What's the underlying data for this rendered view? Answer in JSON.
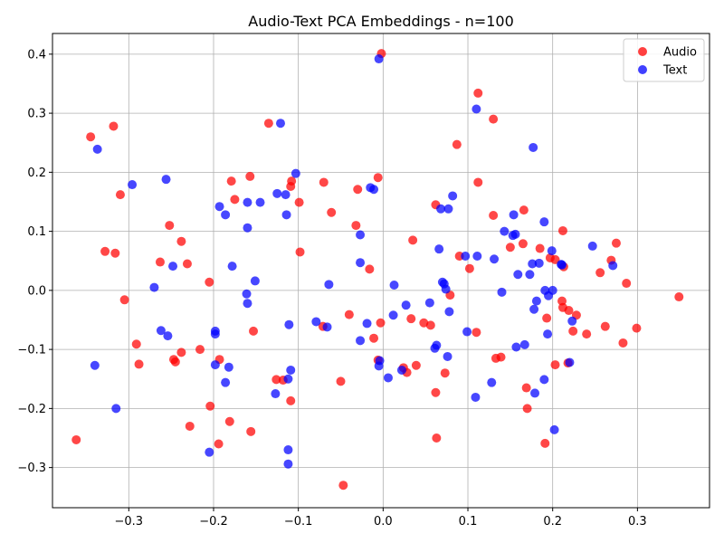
{
  "chart_data": {
    "type": "scatter",
    "title": "Audio-Text PCA Embeddings - n=100",
    "xlabel": "",
    "ylabel": "",
    "xlim": [
      -0.39,
      0.385
    ],
    "ylim": [
      -0.368,
      0.435
    ],
    "xticks": [
      -0.3,
      -0.2,
      -0.1,
      0.0,
      0.1,
      0.2,
      0.3
    ],
    "xtick_labels": [
      "−0.3",
      "−0.2",
      "−0.1",
      "0.0",
      "0.1",
      "0.2",
      "0.3"
    ],
    "yticks": [
      -0.3,
      -0.2,
      -0.1,
      0.0,
      0.1,
      0.2,
      0.3,
      0.4
    ],
    "ytick_labels": [
      "−0.3",
      "−0.2",
      "−0.1",
      "0.0",
      "0.1",
      "0.2",
      "0.3",
      "0.4"
    ],
    "grid": true,
    "legend_position": "top-right",
    "series": [
      {
        "name": "Audio",
        "color": "#ff0000",
        "points": [
          [
            -0.345,
            0.26
          ],
          [
            -0.318,
            0.278
          ],
          [
            -0.31,
            0.162
          ],
          [
            -0.328,
            0.066
          ],
          [
            -0.316,
            0.063
          ],
          [
            -0.305,
            -0.016
          ],
          [
            -0.291,
            -0.091
          ],
          [
            -0.288,
            -0.125
          ],
          [
            -0.252,
            0.11
          ],
          [
            -0.263,
            0.048
          ],
          [
            -0.238,
            0.083
          ],
          [
            -0.231,
            0.045
          ],
          [
            -0.247,
            -0.117
          ],
          [
            -0.245,
            -0.121
          ],
          [
            -0.238,
            -0.105
          ],
          [
            -0.216,
            -0.1
          ],
          [
            -0.228,
            -0.23
          ],
          [
            -0.205,
            0.014
          ],
          [
            -0.204,
            -0.196
          ],
          [
            -0.193,
            -0.117
          ],
          [
            -0.194,
            -0.26
          ],
          [
            -0.179,
            0.185
          ],
          [
            -0.175,
            0.154
          ],
          [
            -0.157,
            0.193
          ],
          [
            -0.153,
            -0.069
          ],
          [
            -0.181,
            -0.222
          ],
          [
            -0.156,
            -0.239
          ],
          [
            -0.362,
            -0.253
          ],
          [
            -0.135,
            0.283
          ],
          [
            -0.108,
            0.185
          ],
          [
            -0.109,
            0.176
          ],
          [
            -0.099,
            0.149
          ],
          [
            -0.098,
            0.065
          ],
          [
            -0.118,
            -0.152
          ],
          [
            -0.109,
            -0.187
          ],
          [
            -0.07,
            0.183
          ],
          [
            -0.061,
            0.132
          ],
          [
            -0.071,
            -0.061
          ],
          [
            -0.05,
            -0.154
          ],
          [
            -0.047,
            -0.33
          ],
          [
            -0.03,
            0.171
          ],
          [
            -0.032,
            0.11
          ],
          [
            -0.04,
            -0.041
          ],
          [
            -0.016,
            0.036
          ],
          [
            -0.011,
            -0.081
          ],
          [
            -0.006,
            0.191
          ],
          [
            -0.002,
            0.401
          ],
          [
            -0.003,
            -0.055
          ],
          [
            -0.006,
            -0.118
          ],
          [
            0.035,
            0.085
          ],
          [
            0.033,
            -0.048
          ],
          [
            0.048,
            -0.055
          ],
          [
            0.056,
            -0.059
          ],
          [
            0.039,
            -0.127
          ],
          [
            0.028,
            -0.139
          ],
          [
            0.024,
            -0.131
          ],
          [
            0.062,
            0.145
          ],
          [
            0.062,
            -0.173
          ],
          [
            0.063,
            -0.25
          ],
          [
            0.087,
            0.247
          ],
          [
            0.09,
            0.058
          ],
          [
            0.102,
            0.037
          ],
          [
            0.079,
            -0.008
          ],
          [
            0.112,
            0.334
          ],
          [
            0.112,
            0.183
          ],
          [
            0.11,
            -0.071
          ],
          [
            0.073,
            -0.14
          ],
          [
            0.13,
            0.29
          ],
          [
            0.13,
            0.127
          ],
          [
            0.133,
            -0.115
          ],
          [
            0.139,
            -0.113
          ],
          [
            0.166,
            0.136
          ],
          [
            0.165,
            0.079
          ],
          [
            0.15,
            0.073
          ],
          [
            0.185,
            0.071
          ],
          [
            0.197,
            0.055
          ],
          [
            0.203,
            0.052
          ],
          [
            0.169,
            -0.165
          ],
          [
            0.17,
            -0.2
          ],
          [
            0.191,
            -0.259
          ],
          [
            0.193,
            -0.047
          ],
          [
            0.212,
            0.101
          ],
          [
            0.211,
            -0.018
          ],
          [
            0.212,
            -0.029
          ],
          [
            0.219,
            -0.034
          ],
          [
            0.228,
            -0.042
          ],
          [
            0.224,
            -0.069
          ],
          [
            0.203,
            -0.126
          ],
          [
            0.218,
            -0.123
          ],
          [
            0.24,
            -0.074
          ],
          [
            0.256,
            0.03
          ],
          [
            0.262,
            -0.061
          ],
          [
            0.269,
            0.051
          ],
          [
            0.275,
            0.08
          ],
          [
            0.283,
            -0.089
          ],
          [
            0.287,
            0.012
          ],
          [
            0.299,
            -0.064
          ],
          [
            0.349,
            -0.011
          ],
          [
            0.213,
            0.04
          ],
          [
            -0.126,
            -0.151
          ]
        ]
      },
      {
        "name": "Text",
        "color": "#0000ff",
        "points": [
          [
            -0.337,
            0.239
          ],
          [
            -0.296,
            0.179
          ],
          [
            -0.256,
            0.188
          ],
          [
            -0.27,
            0.005
          ],
          [
            -0.248,
            0.041
          ],
          [
            -0.262,
            -0.068
          ],
          [
            -0.254,
            -0.077
          ],
          [
            -0.34,
            -0.127
          ],
          [
            -0.315,
            -0.2
          ],
          [
            -0.193,
            0.142
          ],
          [
            -0.186,
            0.128
          ],
          [
            -0.178,
            0.041
          ],
          [
            -0.198,
            -0.069
          ],
          [
            -0.198,
            -0.074
          ],
          [
            -0.198,
            -0.126
          ],
          [
            -0.182,
            -0.13
          ],
          [
            -0.186,
            -0.156
          ],
          [
            -0.205,
            -0.274
          ],
          [
            -0.16,
            0.106
          ],
          [
            -0.16,
            0.149
          ],
          [
            -0.145,
            0.149
          ],
          [
            -0.161,
            -0.006
          ],
          [
            -0.16,
            -0.022
          ],
          [
            -0.151,
            0.016
          ],
          [
            -0.121,
            0.283
          ],
          [
            -0.125,
            0.164
          ],
          [
            -0.115,
            0.162
          ],
          [
            -0.114,
            0.128
          ],
          [
            -0.103,
            0.198
          ],
          [
            -0.111,
            -0.058
          ],
          [
            -0.112,
            -0.15
          ],
          [
            -0.109,
            -0.135
          ],
          [
            -0.127,
            -0.175
          ],
          [
            -0.112,
            -0.27
          ],
          [
            -0.112,
            -0.294
          ],
          [
            -0.064,
            0.01
          ],
          [
            -0.079,
            -0.053
          ],
          [
            -0.066,
            -0.062
          ],
          [
            -0.015,
            0.174
          ],
          [
            -0.011,
            0.171
          ],
          [
            -0.027,
            0.094
          ],
          [
            -0.027,
            0.047
          ],
          [
            -0.027,
            -0.085
          ],
          [
            -0.019,
            -0.056
          ],
          [
            -0.004,
            -0.119
          ],
          [
            -0.005,
            -0.128
          ],
          [
            -0.005,
            0.392
          ],
          [
            0.006,
            -0.148
          ],
          [
            0.012,
            -0.042
          ],
          [
            0.013,
            0.009
          ],
          [
            0.022,
            -0.135
          ],
          [
            0.027,
            -0.025
          ],
          [
            0.055,
            -0.021
          ],
          [
            0.061,
            -0.098
          ],
          [
            0.063,
            -0.093
          ],
          [
            0.066,
            0.07
          ],
          [
            0.068,
            0.138
          ],
          [
            0.07,
            0.014
          ],
          [
            0.072,
            0.011
          ],
          [
            0.074,
            0.002
          ],
          [
            0.076,
            -0.112
          ],
          [
            0.077,
            0.138
          ],
          [
            0.078,
            -0.036
          ],
          [
            0.082,
            0.16
          ],
          [
            0.097,
            0.058
          ],
          [
            0.099,
            -0.07
          ],
          [
            0.11,
            0.307
          ],
          [
            0.111,
            0.058
          ],
          [
            0.109,
            -0.181
          ],
          [
            0.128,
            -0.156
          ],
          [
            0.131,
            0.053
          ],
          [
            0.14,
            -0.003
          ],
          [
            0.143,
            0.1
          ],
          [
            0.153,
            0.093
          ],
          [
            0.154,
            0.128
          ],
          [
            0.156,
            0.095
          ],
          [
            0.159,
            0.027
          ],
          [
            0.157,
            -0.096
          ],
          [
            0.167,
            -0.092
          ],
          [
            0.173,
            0.027
          ],
          [
            0.176,
            0.045
          ],
          [
            0.177,
            0.242
          ],
          [
            0.181,
            -0.018
          ],
          [
            0.184,
            0.046
          ],
          [
            0.178,
            -0.032
          ],
          [
            0.179,
            -0.174
          ],
          [
            0.19,
            0.116
          ],
          [
            0.191,
            0.0
          ],
          [
            0.194,
            -0.074
          ],
          [
            0.195,
            -0.009
          ],
          [
            0.199,
            0.067
          ],
          [
            0.2,
            0.0
          ],
          [
            0.202,
            -0.236
          ],
          [
            0.19,
            -0.151
          ],
          [
            0.21,
            0.044
          ],
          [
            0.22,
            -0.122
          ],
          [
            0.223,
            -0.052
          ],
          [
            0.247,
            0.075
          ],
          [
            0.271,
            0.042
          ],
          [
            0.211,
            0.043
          ]
        ]
      }
    ]
  }
}
